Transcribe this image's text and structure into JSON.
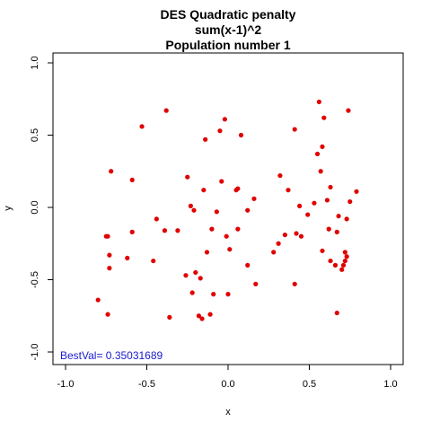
{
  "chart_data": {
    "type": "scatter",
    "title_lines": [
      "DES Quadratic penalty",
      "sum(x-1)^2",
      "Population number 1"
    ],
    "xlabel": "x",
    "ylabel": "y",
    "xlim": [
      -1.0,
      1.0
    ],
    "ylim": [
      -1.0,
      1.0
    ],
    "xticks": [
      "-1.0",
      "-0.5",
      "0.0",
      "0.5",
      "1.0"
    ],
    "yticks": [
      "-1.0",
      "-0.5",
      "0.0",
      "0.5",
      "1.0"
    ],
    "xtick_values": [
      -1.0,
      -0.5,
      0.0,
      0.5,
      1.0
    ],
    "ytick_values": [
      -1.0,
      -0.5,
      0.0,
      0.5,
      1.0
    ],
    "grid": false,
    "point_color": "#e00000",
    "annotation": {
      "text": "BestVal= 0.35031689",
      "color": "#1a1acc"
    },
    "points": [
      [
        -0.8,
        -0.64
      ],
      [
        -0.75,
        -0.2
      ],
      [
        -0.74,
        -0.2
      ],
      [
        -0.74,
        -0.74
      ],
      [
        -0.73,
        -0.33
      ],
      [
        -0.73,
        -0.42
      ],
      [
        -0.72,
        0.25
      ],
      [
        -0.62,
        -0.35
      ],
      [
        -0.59,
        0.19
      ],
      [
        -0.59,
        -0.17
      ],
      [
        -0.53,
        0.56
      ],
      [
        -0.46,
        -0.37
      ],
      [
        -0.44,
        -0.08
      ],
      [
        -0.39,
        -0.16
      ],
      [
        -0.38,
        0.67
      ],
      [
        -0.36,
        -0.76
      ],
      [
        -0.31,
        -0.16
      ],
      [
        -0.26,
        -0.47
      ],
      [
        -0.25,
        0.21
      ],
      [
        -0.23,
        0.01
      ],
      [
        -0.22,
        -0.59
      ],
      [
        -0.21,
        -0.02
      ],
      [
        -0.2,
        -0.45
      ],
      [
        -0.18,
        -0.75
      ],
      [
        -0.17,
        -0.49
      ],
      [
        -0.16,
        -0.77
      ],
      [
        -0.15,
        0.12
      ],
      [
        -0.14,
        0.47
      ],
      [
        -0.13,
        -0.31
      ],
      [
        -0.11,
        -0.74
      ],
      [
        -0.1,
        -0.15
      ],
      [
        -0.09,
        -0.6
      ],
      [
        -0.07,
        -0.03
      ],
      [
        -0.05,
        0.53
      ],
      [
        -0.04,
        0.18
      ],
      [
        -0.02,
        0.61
      ],
      [
        -0.01,
        -0.2
      ],
      [
        0.0,
        -0.6
      ],
      [
        0.01,
        -0.29
      ],
      [
        0.05,
        0.12
      ],
      [
        0.06,
        0.13
      ],
      [
        0.06,
        -0.15
      ],
      [
        0.08,
        0.5
      ],
      [
        0.12,
        -0.02
      ],
      [
        0.12,
        -0.4
      ],
      [
        0.16,
        0.06
      ],
      [
        0.17,
        -0.53
      ],
      [
        0.28,
        -0.31
      ],
      [
        0.31,
        -0.25
      ],
      [
        0.32,
        0.22
      ],
      [
        0.35,
        -0.19
      ],
      [
        0.37,
        0.12
      ],
      [
        0.41,
        -0.53
      ],
      [
        0.41,
        0.54
      ],
      [
        0.42,
        -0.18
      ],
      [
        0.44,
        0.01
      ],
      [
        0.45,
        -0.2
      ],
      [
        0.49,
        -0.05
      ],
      [
        0.53,
        0.03
      ],
      [
        0.55,
        0.37
      ],
      [
        0.56,
        0.73
      ],
      [
        0.57,
        0.25
      ],
      [
        0.58,
        -0.3
      ],
      [
        0.58,
        0.42
      ],
      [
        0.59,
        0.62
      ],
      [
        0.61,
        0.05
      ],
      [
        0.62,
        -0.15
      ],
      [
        0.63,
        0.14
      ],
      [
        0.63,
        -0.37
      ],
      [
        0.66,
        -0.4
      ],
      [
        0.67,
        -0.73
      ],
      [
        0.67,
        -0.17
      ],
      [
        0.68,
        -0.06
      ],
      [
        0.7,
        -0.43
      ],
      [
        0.71,
        -0.4
      ],
      [
        0.72,
        -0.37
      ],
      [
        0.72,
        -0.31
      ],
      [
        0.73,
        -0.34
      ],
      [
        0.73,
        -0.08
      ],
      [
        0.74,
        0.67
      ],
      [
        0.75,
        0.04
      ],
      [
        0.79,
        0.11
      ]
    ]
  }
}
